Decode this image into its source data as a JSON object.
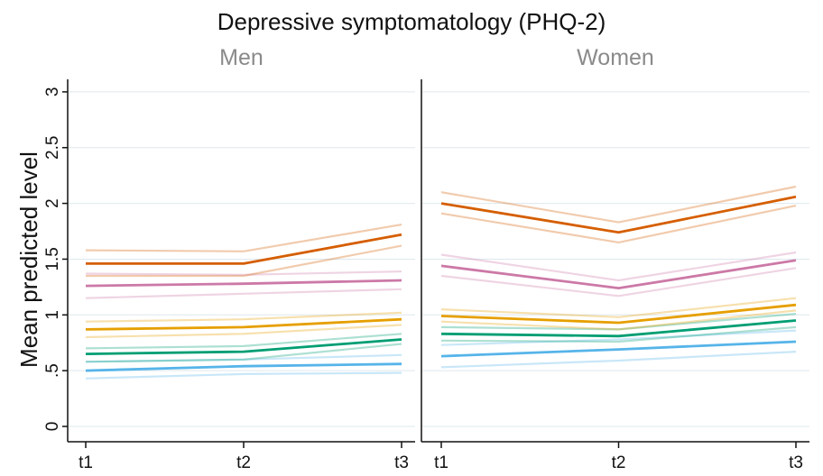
{
  "figure": {
    "title": "Depressive symptomatology (PHQ-2)",
    "ylabel": "Mean predicted level"
  },
  "chart_data": {
    "type": "line",
    "title": "Depressive symptomatology (PHQ-2)",
    "ylabel": "Mean predicted level",
    "xlabel": "",
    "x": [
      "t1",
      "t2",
      "t3"
    ],
    "ylim": [
      0,
      3
    ],
    "yticks": [
      0,
      0.5,
      1,
      1.5,
      2,
      2.5,
      3
    ],
    "ytick_labels": [
      "0",
      ".5",
      "1",
      "1.5",
      "2",
      "2.5",
      "3"
    ],
    "grid": true,
    "panels": [
      {
        "title": "Men",
        "series": [
          {
            "color": "#56b4e9",
            "values": [
              0.5,
              0.54,
              0.56
            ],
            "ci_lower": [
              0.43,
              0.47,
              0.48
            ],
            "ci_upper": [
              0.58,
              0.6,
              0.64
            ]
          },
          {
            "color": "#009e73",
            "values": [
              0.65,
              0.67,
              0.78
            ],
            "ci_lower": [
              0.58,
              0.6,
              0.74
            ],
            "ci_upper": [
              0.7,
              0.72,
              0.83
            ]
          },
          {
            "color": "#e69f00",
            "values": [
              0.87,
              0.89,
              0.96
            ],
            "ci_lower": [
              0.8,
              0.83,
              0.91
            ],
            "ci_upper": [
              0.94,
              0.96,
              1.02
            ]
          },
          {
            "color": "#cc79a7",
            "values": [
              1.26,
              1.28,
              1.31
            ],
            "ci_lower": [
              1.15,
              1.19,
              1.23
            ],
            "ci_upper": [
              1.37,
              1.36,
              1.39
            ]
          },
          {
            "color": "#d55e00",
            "values": [
              1.46,
              1.46,
              1.72
            ],
            "ci_lower": [
              1.35,
              1.35,
              1.62
            ],
            "ci_upper": [
              1.58,
              1.57,
              1.81
            ]
          }
        ]
      },
      {
        "title": "Women",
        "series": [
          {
            "color": "#56b4e9",
            "values": [
              0.63,
              0.69,
              0.76
            ],
            "ci_lower": [
              0.53,
              0.59,
              0.67
            ],
            "ci_upper": [
              0.73,
              0.78,
              0.86
            ]
          },
          {
            "color": "#009e73",
            "values": [
              0.83,
              0.81,
              0.95
            ],
            "ci_lower": [
              0.77,
              0.76,
              0.89
            ],
            "ci_upper": [
              0.89,
              0.87,
              1.01
            ]
          },
          {
            "color": "#e69f00",
            "values": [
              0.99,
              0.93,
              1.09
            ],
            "ci_lower": [
              0.94,
              0.87,
              1.04
            ],
            "ci_upper": [
              1.05,
              0.98,
              1.15
            ]
          },
          {
            "color": "#cc79a7",
            "values": [
              1.44,
              1.24,
              1.49
            ],
            "ci_lower": [
              1.35,
              1.17,
              1.42
            ],
            "ci_upper": [
              1.54,
              1.31,
              1.56
            ]
          },
          {
            "color": "#d55e00",
            "values": [
              2.0,
              1.74,
              2.06
            ],
            "ci_lower": [
              1.91,
              1.65,
              1.98
            ],
            "ci_upper": [
              2.1,
              1.83,
              2.15
            ]
          }
        ]
      }
    ]
  }
}
